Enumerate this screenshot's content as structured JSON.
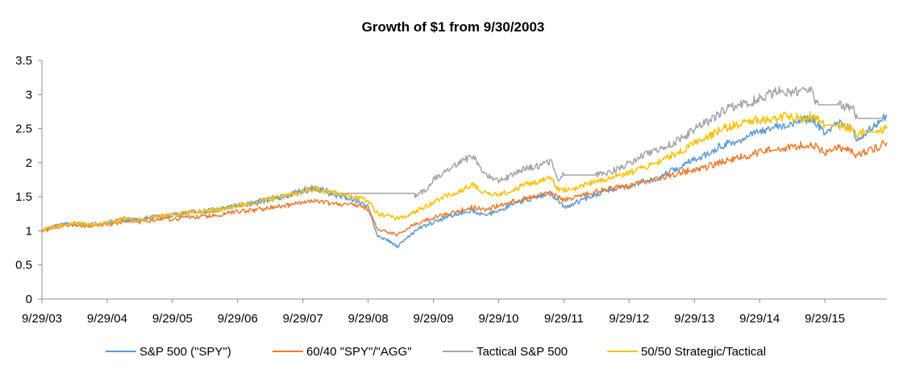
{
  "chart_data": {
    "type": "line",
    "title": "Growth of $1 from 9/30/2003",
    "xlabel": "",
    "ylabel": "",
    "ylim": [
      0,
      3.5
    ],
    "yticks": [
      "0",
      "0.5",
      "1",
      "1.5",
      "2",
      "2.5",
      "3",
      "3.5"
    ],
    "xticks": [
      "9/29/03",
      "9/29/04",
      "9/29/05",
      "9/29/06",
      "9/29/07",
      "9/29/08",
      "9/29/09",
      "9/29/10",
      "9/29/11",
      "9/29/12",
      "9/29/13",
      "9/29/14",
      "9/29/15"
    ],
    "x_unit": "years since 9/29/03",
    "x_range": [
      0,
      12.95
    ],
    "grid": false,
    "legend_position": "bottom",
    "series": [
      {
        "name": "S&P 500 (\"SPY\")",
        "color": "#5B9BD5",
        "points": [
          [
            0,
            1.0
          ],
          [
            0.25,
            1.08
          ],
          [
            0.5,
            1.1
          ],
          [
            0.75,
            1.08
          ],
          [
            1,
            1.1
          ],
          [
            1.25,
            1.17
          ],
          [
            1.5,
            1.16
          ],
          [
            1.75,
            1.2
          ],
          [
            2,
            1.22
          ],
          [
            2.25,
            1.27
          ],
          [
            2.5,
            1.27
          ],
          [
            2.75,
            1.32
          ],
          [
            3,
            1.37
          ],
          [
            3.25,
            1.4
          ],
          [
            3.5,
            1.46
          ],
          [
            3.75,
            1.5
          ],
          [
            4,
            1.58
          ],
          [
            4.2,
            1.62
          ],
          [
            4.4,
            1.55
          ],
          [
            4.6,
            1.5
          ],
          [
            4.8,
            1.45
          ],
          [
            5.0,
            1.35
          ],
          [
            5.08,
            1.1
          ],
          [
            5.15,
            0.92
          ],
          [
            5.3,
            0.86
          ],
          [
            5.45,
            0.77
          ],
          [
            5.6,
            0.9
          ],
          [
            5.8,
            1.05
          ],
          [
            6.0,
            1.12
          ],
          [
            6.2,
            1.2
          ],
          [
            6.4,
            1.25
          ],
          [
            6.6,
            1.3
          ],
          [
            6.8,
            1.22
          ],
          [
            7.0,
            1.3
          ],
          [
            7.2,
            1.38
          ],
          [
            7.4,
            1.45
          ],
          [
            7.6,
            1.5
          ],
          [
            7.8,
            1.55
          ],
          [
            7.9,
            1.45
          ],
          [
            8.0,
            1.35
          ],
          [
            8.1,
            1.38
          ],
          [
            8.2,
            1.42
          ],
          [
            8.4,
            1.5
          ],
          [
            8.6,
            1.58
          ],
          [
            8.8,
            1.62
          ],
          [
            9.0,
            1.65
          ],
          [
            9.2,
            1.72
          ],
          [
            9.4,
            1.75
          ],
          [
            9.6,
            1.85
          ],
          [
            9.8,
            1.95
          ],
          [
            10.0,
            2.05
          ],
          [
            10.2,
            2.12
          ],
          [
            10.4,
            2.25
          ],
          [
            10.6,
            2.3
          ],
          [
            10.8,
            2.38
          ],
          [
            11.0,
            2.45
          ],
          [
            11.2,
            2.52
          ],
          [
            11.4,
            2.55
          ],
          [
            11.6,
            2.62
          ],
          [
            11.8,
            2.65
          ],
          [
            11.9,
            2.55
          ],
          [
            12.0,
            2.45
          ],
          [
            12.2,
            2.58
          ],
          [
            12.4,
            2.5
          ],
          [
            12.5,
            2.35
          ],
          [
            12.6,
            2.42
          ],
          [
            12.8,
            2.58
          ],
          [
            12.95,
            2.7
          ]
        ]
      },
      {
        "name": "60/40 \"SPY\"/\"AGG\"",
        "color": "#ED7D31",
        "points": [
          [
            0,
            1.0
          ],
          [
            0.25,
            1.06
          ],
          [
            0.5,
            1.08
          ],
          [
            0.75,
            1.07
          ],
          [
            1,
            1.09
          ],
          [
            1.25,
            1.13
          ],
          [
            1.5,
            1.13
          ],
          [
            1.75,
            1.16
          ],
          [
            2,
            1.17
          ],
          [
            2.25,
            1.2
          ],
          [
            2.5,
            1.21
          ],
          [
            2.75,
            1.24
          ],
          [
            3,
            1.28
          ],
          [
            3.25,
            1.3
          ],
          [
            3.5,
            1.34
          ],
          [
            3.75,
            1.37
          ],
          [
            4,
            1.42
          ],
          [
            4.2,
            1.44
          ],
          [
            4.4,
            1.41
          ],
          [
            4.6,
            1.39
          ],
          [
            4.8,
            1.37
          ],
          [
            5.0,
            1.32
          ],
          [
            5.08,
            1.15
          ],
          [
            5.15,
            1.02
          ],
          [
            5.3,
            0.98
          ],
          [
            5.45,
            0.95
          ],
          [
            5.6,
            1.03
          ],
          [
            5.8,
            1.13
          ],
          [
            6.0,
            1.19
          ],
          [
            6.2,
            1.25
          ],
          [
            6.4,
            1.3
          ],
          [
            6.6,
            1.35
          ],
          [
            6.8,
            1.31
          ],
          [
            7.0,
            1.37
          ],
          [
            7.2,
            1.43
          ],
          [
            7.4,
            1.48
          ],
          [
            7.6,
            1.52
          ],
          [
            7.8,
            1.55
          ],
          [
            7.9,
            1.5
          ],
          [
            8.0,
            1.45
          ],
          [
            8.1,
            1.47
          ],
          [
            8.2,
            1.5
          ],
          [
            8.4,
            1.55
          ],
          [
            8.6,
            1.6
          ],
          [
            8.8,
            1.63
          ],
          [
            9.0,
            1.66
          ],
          [
            9.2,
            1.72
          ],
          [
            9.4,
            1.76
          ],
          [
            9.6,
            1.81
          ],
          [
            9.8,
            1.86
          ],
          [
            10.0,
            1.9
          ],
          [
            10.2,
            1.94
          ],
          [
            10.4,
            2.0
          ],
          [
            10.6,
            2.05
          ],
          [
            10.8,
            2.1
          ],
          [
            11.0,
            2.15
          ],
          [
            11.2,
            2.2
          ],
          [
            11.4,
            2.22
          ],
          [
            11.6,
            2.25
          ],
          [
            11.8,
            2.27
          ],
          [
            11.9,
            2.22
          ],
          [
            12.0,
            2.15
          ],
          [
            12.2,
            2.22
          ],
          [
            12.4,
            2.18
          ],
          [
            12.5,
            2.1
          ],
          [
            12.6,
            2.15
          ],
          [
            12.8,
            2.22
          ],
          [
            12.95,
            2.3
          ]
        ]
      },
      {
        "name": "Tactical S&P 500",
        "color": "#A5A5A5",
        "points": [
          [
            0,
            1.0
          ],
          [
            0.25,
            1.09
          ],
          [
            0.5,
            1.12
          ],
          [
            0.75,
            1.1
          ],
          [
            1,
            1.12
          ],
          [
            1.25,
            1.18
          ],
          [
            1.5,
            1.17
          ],
          [
            1.75,
            1.22
          ],
          [
            2,
            1.24
          ],
          [
            2.25,
            1.28
          ],
          [
            2.5,
            1.29
          ],
          [
            2.75,
            1.33
          ],
          [
            3,
            1.38
          ],
          [
            3.25,
            1.42
          ],
          [
            3.5,
            1.48
          ],
          [
            3.75,
            1.52
          ],
          [
            4,
            1.6
          ],
          [
            4.2,
            1.64
          ],
          [
            4.4,
            1.58
          ],
          [
            4.5,
            1.55
          ],
          [
            5.0,
            1.55
          ],
          [
            5.5,
            1.55
          ],
          [
            5.7,
            1.55
          ],
          [
            5.72,
            1.5
          ],
          [
            5.9,
            1.62
          ],
          [
            6.0,
            1.75
          ],
          [
            6.2,
            1.9
          ],
          [
            6.4,
            2.0
          ],
          [
            6.6,
            2.1
          ],
          [
            6.8,
            1.82
          ],
          [
            7.0,
            1.72
          ],
          [
            7.2,
            1.82
          ],
          [
            7.4,
            1.92
          ],
          [
            7.6,
            1.95
          ],
          [
            7.8,
            2.02
          ],
          [
            7.9,
            1.75
          ],
          [
            8.0,
            1.82
          ],
          [
            8.5,
            1.82
          ],
          [
            8.7,
            1.85
          ],
          [
            8.9,
            1.95
          ],
          [
            9.1,
            2.05
          ],
          [
            9.3,
            2.15
          ],
          [
            9.5,
            2.2
          ],
          [
            9.7,
            2.3
          ],
          [
            9.9,
            2.42
          ],
          [
            10.1,
            2.55
          ],
          [
            10.3,
            2.65
          ],
          [
            10.5,
            2.8
          ],
          [
            10.7,
            2.85
          ],
          [
            10.9,
            2.9
          ],
          [
            11.1,
            2.98
          ],
          [
            11.3,
            3.05
          ],
          [
            11.5,
            3.02
          ],
          [
            11.7,
            3.08
          ],
          [
            11.82,
            3.1
          ],
          [
            11.85,
            2.9
          ],
          [
            11.9,
            2.85
          ],
          [
            12.2,
            2.85
          ],
          [
            12.4,
            2.82
          ],
          [
            12.5,
            2.65
          ],
          [
            12.8,
            2.65
          ],
          [
            12.9,
            2.65
          ],
          [
            12.95,
            2.68
          ]
        ]
      },
      {
        "name": "50/50 Strategic/Tactical",
        "color": "#FFC000",
        "points": [
          [
            0,
            1.0
          ],
          [
            0.25,
            1.08
          ],
          [
            0.5,
            1.11
          ],
          [
            0.75,
            1.09
          ],
          [
            1,
            1.11
          ],
          [
            1.25,
            1.17
          ],
          [
            1.5,
            1.16
          ],
          [
            1.75,
            1.21
          ],
          [
            2,
            1.23
          ],
          [
            2.25,
            1.27
          ],
          [
            2.5,
            1.28
          ],
          [
            2.75,
            1.32
          ],
          [
            3,
            1.37
          ],
          [
            3.25,
            1.41
          ],
          [
            3.5,
            1.47
          ],
          [
            3.75,
            1.51
          ],
          [
            4,
            1.59
          ],
          [
            4.2,
            1.62
          ],
          [
            4.4,
            1.56
          ],
          [
            4.6,
            1.52
          ],
          [
            4.8,
            1.5
          ],
          [
            5.0,
            1.44
          ],
          [
            5.08,
            1.33
          ],
          [
            5.15,
            1.25
          ],
          [
            5.3,
            1.22
          ],
          [
            5.45,
            1.18
          ],
          [
            5.6,
            1.22
          ],
          [
            5.8,
            1.32
          ],
          [
            6.0,
            1.42
          ],
          [
            6.2,
            1.52
          ],
          [
            6.4,
            1.58
          ],
          [
            6.6,
            1.68
          ],
          [
            6.8,
            1.55
          ],
          [
            7.0,
            1.52
          ],
          [
            7.2,
            1.6
          ],
          [
            7.4,
            1.68
          ],
          [
            7.6,
            1.72
          ],
          [
            7.8,
            1.78
          ],
          [
            7.9,
            1.62
          ],
          [
            8.0,
            1.6
          ],
          [
            8.2,
            1.62
          ],
          [
            8.4,
            1.7
          ],
          [
            8.6,
            1.75
          ],
          [
            8.8,
            1.8
          ],
          [
            9.0,
            1.85
          ],
          [
            9.2,
            1.92
          ],
          [
            9.4,
            1.98
          ],
          [
            9.6,
            2.08
          ],
          [
            9.8,
            2.18
          ],
          [
            10.0,
            2.28
          ],
          [
            10.2,
            2.38
          ],
          [
            10.4,
            2.48
          ],
          [
            10.6,
            2.55
          ],
          [
            10.8,
            2.6
          ],
          [
            11.0,
            2.62
          ],
          [
            11.2,
            2.65
          ],
          [
            11.4,
            2.68
          ],
          [
            11.6,
            2.66
          ],
          [
            11.8,
            2.68
          ],
          [
            11.9,
            2.62
          ],
          [
            12.0,
            2.55
          ],
          [
            12.2,
            2.55
          ],
          [
            12.4,
            2.5
          ],
          [
            12.5,
            2.4
          ],
          [
            12.6,
            2.45
          ],
          [
            12.8,
            2.45
          ],
          [
            12.95,
            2.5
          ]
        ]
      }
    ]
  }
}
